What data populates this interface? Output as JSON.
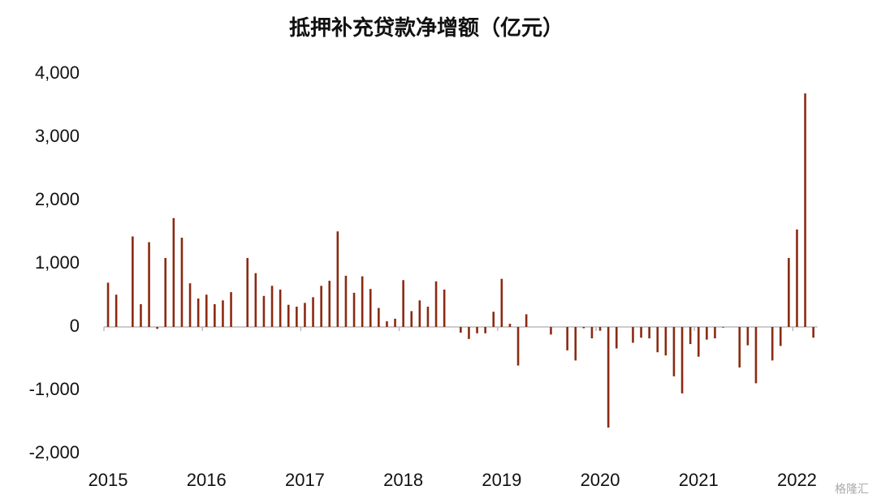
{
  "chart_data": {
    "type": "bar",
    "title": "抵押补充贷款净增额（亿元）",
    "categories": [
      "2015",
      null,
      null,
      null,
      null,
      null,
      null,
      null,
      null,
      null,
      null,
      null,
      "2016",
      null,
      null,
      null,
      null,
      null,
      null,
      null,
      null,
      null,
      null,
      null,
      "2017",
      null,
      null,
      null,
      null,
      null,
      null,
      null,
      null,
      null,
      null,
      null,
      "2018",
      null,
      null,
      null,
      null,
      null,
      null,
      null,
      null,
      null,
      null,
      null,
      "2019",
      null,
      null,
      null,
      null,
      null,
      null,
      null,
      null,
      null,
      null,
      null,
      "2020",
      null,
      null,
      null,
      null,
      null,
      null,
      null,
      null,
      null,
      null,
      null,
      "2021",
      null,
      null,
      null,
      null,
      null,
      null,
      null,
      null,
      null,
      null,
      null,
      "2022",
      null,
      null
    ],
    "values": [
      700,
      510,
      0,
      1430,
      360,
      1340,
      -30,
      1090,
      1720,
      1410,
      690,
      450,
      510,
      360,
      420,
      550,
      0,
      1090,
      850,
      490,
      650,
      590,
      350,
      320,
      380,
      470,
      650,
      730,
      1510,
      810,
      540,
      800,
      600,
      300,
      90,
      130,
      740,
      250,
      420,
      320,
      720,
      590,
      0,
      -90,
      -190,
      -100,
      -100,
      240,
      760,
      50,
      -610,
      200,
      0,
      0,
      -120,
      0,
      -370,
      -530,
      -20,
      -180,
      -60,
      -1590,
      -340,
      0,
      -250,
      -170,
      -180,
      -400,
      -450,
      -780,
      -1050,
      -270,
      -470,
      -200,
      -180,
      -10,
      0,
      -640,
      -290,
      -890,
      0,
      -530,
      -300,
      1090,
      1540,
      3690,
      -170
    ],
    "color": "#8b2a12",
    "ylim": [
      -2000,
      4000
    ],
    "yticks": [
      {
        "value": -2000,
        "label": "-2,000"
      },
      {
        "value": -1000,
        "label": "-1,000"
      },
      0,
      {
        "value": 1000,
        "label": "1,000"
      },
      {
        "value": 2000,
        "label": "2,000"
      },
      {
        "value": 3000,
        "label": "3,000"
      },
      {
        "value": 4000,
        "label": "4,000"
      }
    ],
    "grid": false,
    "watermark": "格隆汇"
  }
}
